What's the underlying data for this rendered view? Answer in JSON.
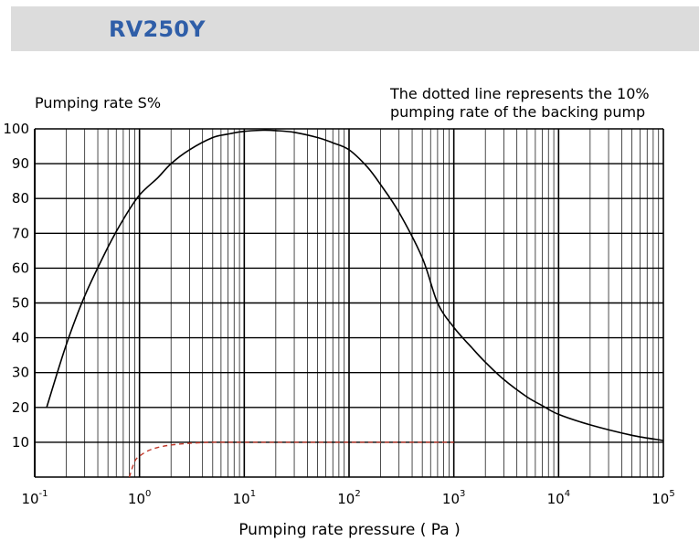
{
  "header": {
    "title": "RV250Y"
  },
  "chart_data": {
    "type": "line",
    "title": "RV250Y",
    "xlabel": "Pumping rate pressure ( Pa )",
    "ylabel": "Pumping rate S%",
    "annotation": [
      "The dotted line represents the 10%",
      "pumping rate of the backing pump"
    ],
    "x_scale": "log",
    "xlim": [
      0.1,
      100000
    ],
    "ylim": [
      0,
      100
    ],
    "yticks": [
      10,
      20,
      30,
      40,
      50,
      60,
      70,
      80,
      90,
      100
    ],
    "xticks": [
      {
        "value": 0.1,
        "base": "10",
        "exp": "-1"
      },
      {
        "value": 1,
        "base": "10",
        "exp": "0"
      },
      {
        "value": 10,
        "base": "10",
        "exp": "1"
      },
      {
        "value": 100,
        "base": "10",
        "exp": "2"
      },
      {
        "value": 1000,
        "base": "10",
        "exp": "3"
      },
      {
        "value": 10000,
        "base": "10",
        "exp": "4"
      },
      {
        "value": 100000,
        "base": "10",
        "exp": "5"
      }
    ],
    "grid": true,
    "series": [
      {
        "style": "solid",
        "color": "#000000",
        "x": [
          0.13,
          0.2,
          0.3,
          0.5,
          0.7,
          1.0,
          1.5,
          2,
          3,
          5,
          7,
          10,
          15,
          20,
          30,
          50,
          70,
          100,
          150,
          200,
          300,
          500,
          700,
          1000,
          1500,
          2000,
          3000,
          5000,
          7000,
          10000,
          20000,
          50000,
          100000
        ],
        "y": [
          20,
          38,
          52,
          66,
          74,
          81,
          86,
          90,
          94,
          97.5,
          98.5,
          99.3,
          99.6,
          99.5,
          99,
          97.5,
          96,
          94,
          89,
          84,
          76,
          63,
          50,
          43,
          37,
          33,
          28,
          23,
          20.5,
          18,
          15,
          12,
          10.5
        ]
      },
      {
        "style": "dashed",
        "color": "#c0392b",
        "x": [
          0.8,
          0.9,
          1.0,
          1.2,
          1.5,
          2,
          3,
          4,
          5,
          10,
          100,
          1000
        ],
        "y": [
          0,
          4.5,
          6,
          7.5,
          8.5,
          9.2,
          9.7,
          9.9,
          10,
          10,
          10,
          10
        ]
      }
    ]
  }
}
